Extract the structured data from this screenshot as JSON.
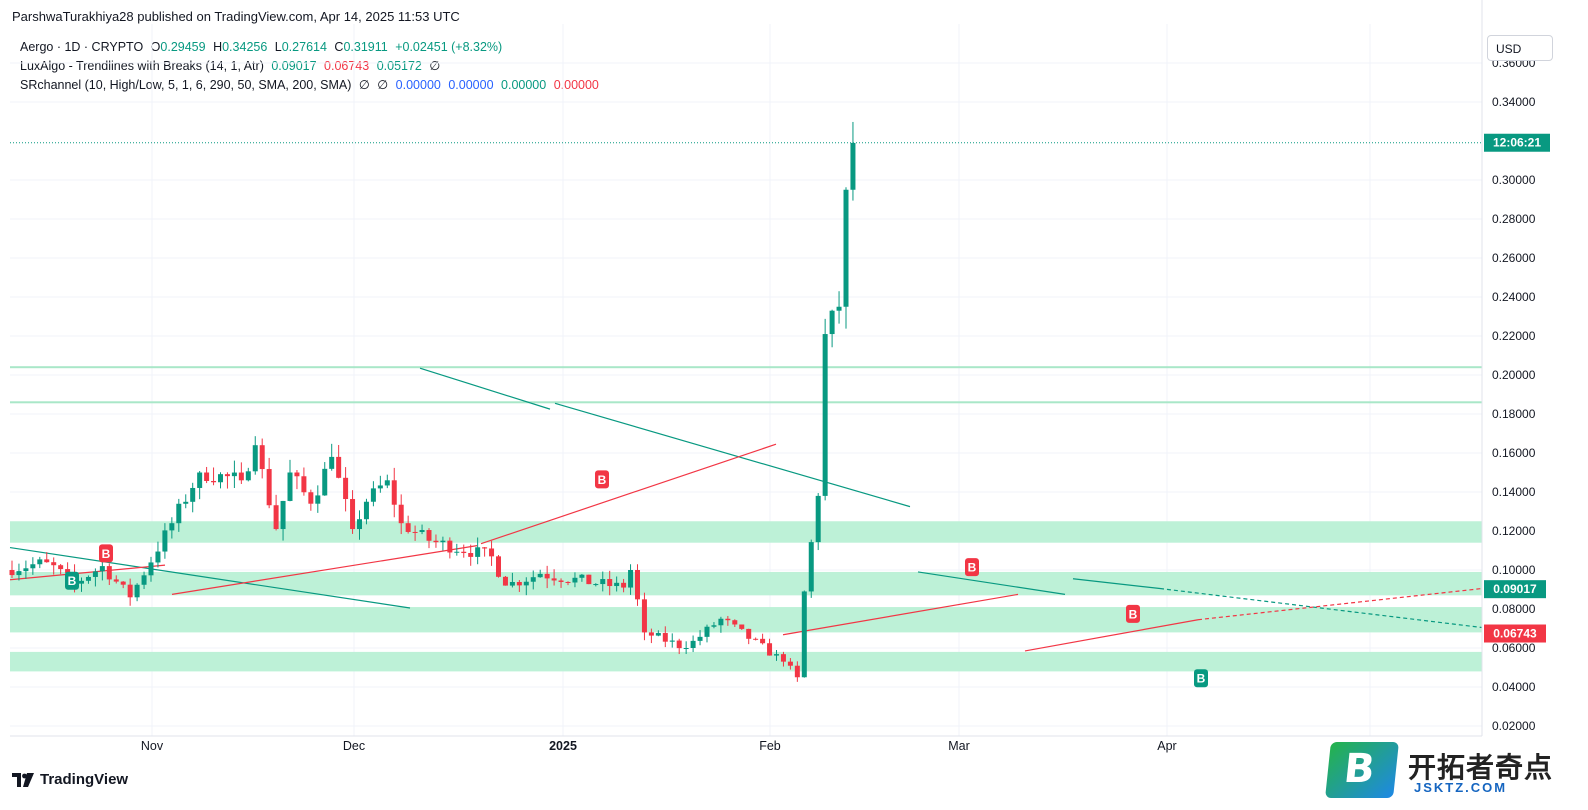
{
  "header": {
    "text": "ParshwaTurakhiya28 published on TradingView.com, Apr 14, 2025 11:53 UTC"
  },
  "legend": {
    "symbol": "Aergo · 1D · CRYPTO",
    "o_label": "O",
    "o": "0.29459",
    "h_label": "H",
    "h": "0.34256",
    "l_label": "L",
    "l": "0.27614",
    "c_label": "C",
    "c": "0.31911",
    "change": "+0.02451 (+8.32%)",
    "lux_name": "LuxAlgo - Trendlines with Breaks (14, 1, Atr)",
    "lux_v1": "0.09017",
    "lux_v2": "0.06743",
    "lux_v3": "0.05172",
    "lux_v4": "∅",
    "sr_name": "SRchannel (10, High/Low, 5, 1, 6, 290, 50, SMA, 200, SMA)",
    "sr_v1": "∅",
    "sr_v2": "∅",
    "sr_v3": "0.00000",
    "sr_v4": "0.00000",
    "sr_v5": "0.00000",
    "sr_v6": "0.00000"
  },
  "currency": "USD",
  "footer": {
    "logo": "TradingView"
  },
  "watermark": {
    "letter": "B",
    "title": "开拓者奇点",
    "url": "JSKTZ.COM"
  },
  "colors": {
    "up": "#089981",
    "down": "#f23645",
    "zone": "#b9f0d5",
    "trend_green": "#089981",
    "trend_red": "#f23645"
  },
  "chart_data": {
    "type": "candlestick",
    "y_ticks": [
      "0.02000",
      "0.04000",
      "0.06000",
      "0.08000",
      "0.10000",
      "0.12000",
      "0.14000",
      "0.16000",
      "0.18000",
      "0.20000",
      "0.22000",
      "0.24000",
      "0.26000",
      "0.28000",
      "0.30000",
      "0.34000",
      "0.36000"
    ],
    "x_labels": [
      "Nov",
      "Dec",
      "2025",
      "Feb",
      "Mar",
      "Apr"
    ],
    "ylim": [
      0.013,
      0.36
    ],
    "countdown_label": "12:06:21",
    "last_price": 0.31911,
    "price_labels": [
      {
        "value": 0.09017,
        "text": "0.09017",
        "color": "#089981"
      },
      {
        "value": 0.06743,
        "text": "0.06743",
        "color": "#f23645"
      }
    ],
    "zones": [
      [
        0.114,
        0.125
      ],
      [
        0.087,
        0.099
      ],
      [
        0.068,
        0.081
      ],
      [
        0.048,
        0.058
      ]
    ],
    "levels": [
      0.204,
      0.186
    ],
    "trendlines": [
      {
        "color": "#089981",
        "x1": 0,
        "y1": 0.1115,
        "x2": 400,
        "y2": 0.0805
      },
      {
        "color": "#f23645",
        "x1": 0,
        "y1": 0.095,
        "x2": 155,
        "y2": 0.1025
      },
      {
        "color": "#f23645",
        "x1": 162,
        "y1": 0.0875,
        "x2": 467,
        "y2": 0.1125
      },
      {
        "color": "#089981",
        "x1": 410,
        "y1": 0.2035,
        "x2": 540,
        "y2": 0.1825
      },
      {
        "color": "#089981",
        "x1": 545,
        "y1": 0.1855,
        "x2": 900,
        "y2": 0.1325
      },
      {
        "color": "#f23645",
        "x1": 471,
        "y1": 0.1135,
        "x2": 766,
        "y2": 0.1645
      },
      {
        "color": "#089981",
        "x1": 908,
        "y1": 0.099,
        "x2": 1055,
        "y2": 0.0875
      },
      {
        "color": "#f23645",
        "x1": 773,
        "y1": 0.0668,
        "x2": 1008,
        "y2": 0.0875
      },
      {
        "color": "#089981",
        "x1": 1063,
        "y1": 0.0955,
        "x2": 1150,
        "y2": 0.0905
      },
      {
        "color": "#f23645",
        "x1": 1015,
        "y1": 0.0585,
        "x2": 1188,
        "y2": 0.0745
      }
    ],
    "projections": [
      {
        "color": "#089981",
        "x1": 1150,
        "y1": 0.0905,
        "x2": 1472,
        "y2": 0.0705
      },
      {
        "color": "#f23645",
        "x1": 1188,
        "y1": 0.0745,
        "x2": 1472,
        "y2": 0.0905
      }
    ],
    "badges": [
      {
        "x": 62,
        "y": 0.0945,
        "label": "B",
        "color": "#089981"
      },
      {
        "x": 96,
        "y": 0.1085,
        "label": "B",
        "color": "#f23645"
      },
      {
        "x": 592,
        "y": 0.1465,
        "label": "B",
        "color": "#f23645"
      },
      {
        "x": 962,
        "y": 0.1015,
        "label": "B",
        "color": "#f23645"
      },
      {
        "x": 1123,
        "y": 0.0775,
        "label": "B",
        "color": "#f23645"
      },
      {
        "x": 1191,
        "y": 0.0445,
        "label": "B",
        "color": "#089981"
      }
    ],
    "segments": [
      [
        0.1,
        0.104,
        40
      ],
      [
        0.104,
        0.093,
        26
      ],
      [
        0.093,
        0.102,
        30
      ],
      [
        0.102,
        0.086,
        30
      ],
      [
        0.086,
        0.124,
        44
      ],
      [
        0.124,
        0.15,
        26
      ],
      [
        0.15,
        0.146,
        44
      ],
      [
        0.146,
        0.164,
        14
      ],
      [
        0.164,
        0.121,
        24
      ],
      [
        0.121,
        0.15,
        16
      ],
      [
        0.15,
        0.134,
        21
      ],
      [
        0.134,
        0.158,
        19
      ],
      [
        0.158,
        0.121,
        18
      ],
      [
        0.121,
        0.135,
        11
      ],
      [
        0.135,
        0.146,
        20
      ],
      [
        0.146,
        0.124,
        14
      ],
      [
        0.124,
        0.115,
        26
      ],
      [
        0.115,
        0.107,
        60
      ],
      [
        0.107,
        0.092,
        13
      ],
      [
        0.092,
        0.098,
        35
      ],
      [
        0.098,
        0.091,
        85
      ],
      [
        0.091,
        0.1,
        10
      ],
      [
        0.1,
        0.068,
        15
      ],
      [
        0.068,
        0.06,
        40
      ],
      [
        0.06,
        0.075,
        35
      ],
      [
        0.075,
        0.053,
        66
      ],
      [
        0.053,
        0.045,
        12
      ],
      [
        0.045,
        0.089,
        6
      ],
      [
        0.089,
        0.138,
        12
      ],
      [
        0.138,
        0.221,
        10
      ],
      [
        0.221,
        0.235,
        14
      ],
      [
        0.235,
        0.295,
        9
      ],
      [
        0.295,
        0.319,
        4
      ]
    ]
  }
}
